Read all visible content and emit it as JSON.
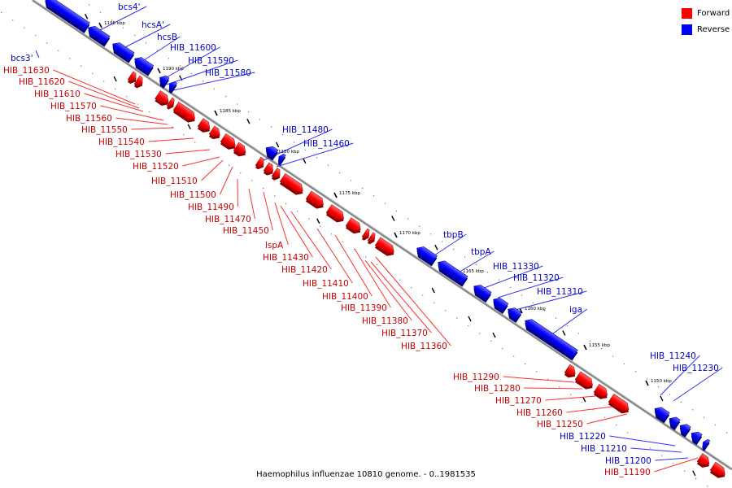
{
  "caption": "Haemophilus influenzae 10810 genome. - 0..1981535",
  "legend": [
    {
      "label": "Forward",
      "color": "#ff0000"
    },
    {
      "label": "Reverse",
      "color": "#0000ff"
    }
  ],
  "scale_labels": [
    "1195 kbp",
    "1190 kbp",
    "1185 kbp",
    "1180 kbp",
    "1175 kbp",
    "1170 kbp",
    "1165 kbp",
    "1160 kbp",
    "1155 kbp",
    "1150 kbp"
  ],
  "forward_labels": [
    "HIB_11630",
    "HIB_11620",
    "HIB_11610",
    "HIB_11570",
    "HIB_11560",
    "HIB_11550",
    "HIB_11540",
    "HIB_11530",
    "HIB_11520",
    "HIB_11510",
    "HIB_11500",
    "HIB_11490",
    "HIB_11470",
    "HIB_11450",
    "lspA",
    "HIB_11430",
    "HIB_11420",
    "HIB_11410",
    "HIB_11400",
    "HIB_11390",
    "HIB_11380",
    "HIB_11370",
    "HIB_11360",
    "HIB_11290",
    "HIB_11280",
    "HIB_11270",
    "HIB_11260",
    "HIB_11250",
    "HIB_11190"
  ],
  "reverse_labels": [
    "bcs4'",
    "hcsA'",
    "hcsB",
    "bcs3'",
    "HIB_11600",
    "HIB_11590",
    "HIB_11580",
    "HIB_11480",
    "HIB_11460",
    "tbpB",
    "tbpA",
    "HIB_11330",
    "HIB_11320",
    "HIB_11310",
    "iga",
    "HIB_11240",
    "HIB_11230",
    "HIB_11220",
    "HIB_11210",
    "HIB_11200"
  ],
  "colors": {
    "forward": "#ff0000",
    "reverse": "#0000ff",
    "forward_label": "#cc0000",
    "reverse_label": "#0000cc",
    "axis": "#888888"
  }
}
